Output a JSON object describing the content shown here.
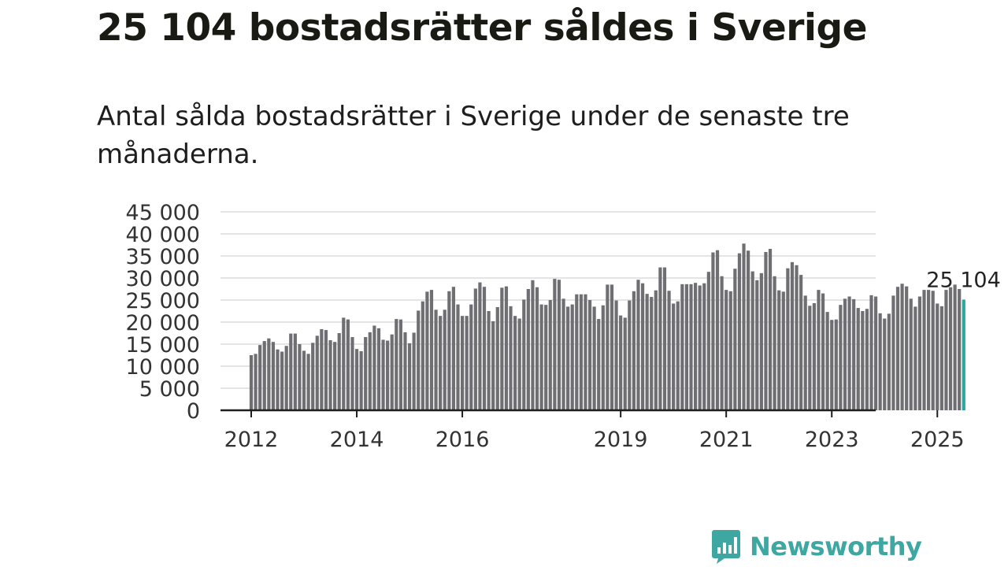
{
  "title": "25 104 bostadsrätter såldes i Sverige",
  "subtitle": "Antal sålda bostadsrätter i Sverige under de senaste tre månaderna.",
  "brand": {
    "name": "Newsworthy",
    "icon": "newsworthy-logo-icon"
  },
  "colors": {
    "bar": "#6f6e73",
    "highlight": "#2aa79d",
    "grid": "#dcdcdc",
    "axis": "#1e1e1e",
    "brand": "#3fa7a2"
  },
  "chart_data": {
    "type": "bar",
    "title": "",
    "xlabel": "",
    "ylabel": "",
    "ylim": [
      0,
      45000
    ],
    "grid": true,
    "y_ticks": [
      0,
      5000,
      10000,
      15000,
      20000,
      25000,
      30000,
      35000,
      40000,
      45000
    ],
    "y_tick_labels": [
      "0",
      "5 000",
      "10 000",
      "15 000",
      "20 000",
      "25 000",
      "30 000",
      "35 000",
      "40 000",
      "45 000"
    ],
    "x_tick_labels": [
      {
        "label": "2012",
        "at": "2012-01"
      },
      {
        "label": "2014",
        "at": "2014-01"
      },
      {
        "label": "2016",
        "at": "2016-01"
      },
      {
        "label": "2019",
        "at": "2019-01"
      },
      {
        "label": "2021",
        "at": "2021-01"
      },
      {
        "label": "2023",
        "at": "2023-01"
      },
      {
        "label": "2025",
        "at": "2025-01"
      }
    ],
    "highlight_label": "25 104",
    "start": "2012-01",
    "values": [
      12500,
      12800,
      14800,
      15700,
      16300,
      15500,
      13800,
      13300,
      14600,
      17400,
      17400,
      15000,
      13500,
      12800,
      15300,
      16900,
      18400,
      18200,
      15900,
      15500,
      17500,
      21000,
      20600,
      16600,
      13900,
      13400,
      16600,
      17700,
      19200,
      18600,
      16000,
      15800,
      17200,
      20700,
      20600,
      17700,
      15200,
      17600,
      22600,
      24700,
      26900,
      27300,
      22800,
      21400,
      22800,
      27000,
      28000,
      24000,
      21400,
      21400,
      24000,
      27600,
      29000,
      28000,
      22500,
      20200,
      23400,
      27800,
      28100,
      23600,
      21400,
      20800,
      25100,
      27500,
      29500,
      27900,
      24000,
      23900,
      25000,
      29800,
      29600,
      25300,
      23500,
      24000,
      26300,
      26300,
      26300,
      25000,
      23500,
      20700,
      23800,
      28500,
      28500,
      24900,
      21500,
      21000,
      24900,
      27000,
      29600,
      28800,
      26400,
      25700,
      27200,
      32400,
      32400,
      27100,
      24200,
      24700,
      28600,
      28600,
      28600,
      28900,
      28300,
      28800,
      31400,
      35800,
      36300,
      30400,
      27300,
      27000,
      32100,
      35600,
      37800,
      36200,
      31500,
      29500,
      31100,
      35900,
      36600,
      30400,
      27200,
      26900,
      32200,
      33600,
      32900,
      30700,
      26000,
      23700,
      24300,
      27300,
      26500,
      22300,
      20500,
      20600,
      23900,
      25300,
      25800,
      25200,
      23200,
      22500,
      23000,
      26100,
      25800,
      22000,
      20800,
      21900,
      26000,
      28000,
      28700,
      28100,
      25300,
      23500,
      25800,
      27300,
      27300,
      27100,
      24200,
      23600,
      27300,
      27900,
      28500,
      27500,
      25104
    ]
  }
}
